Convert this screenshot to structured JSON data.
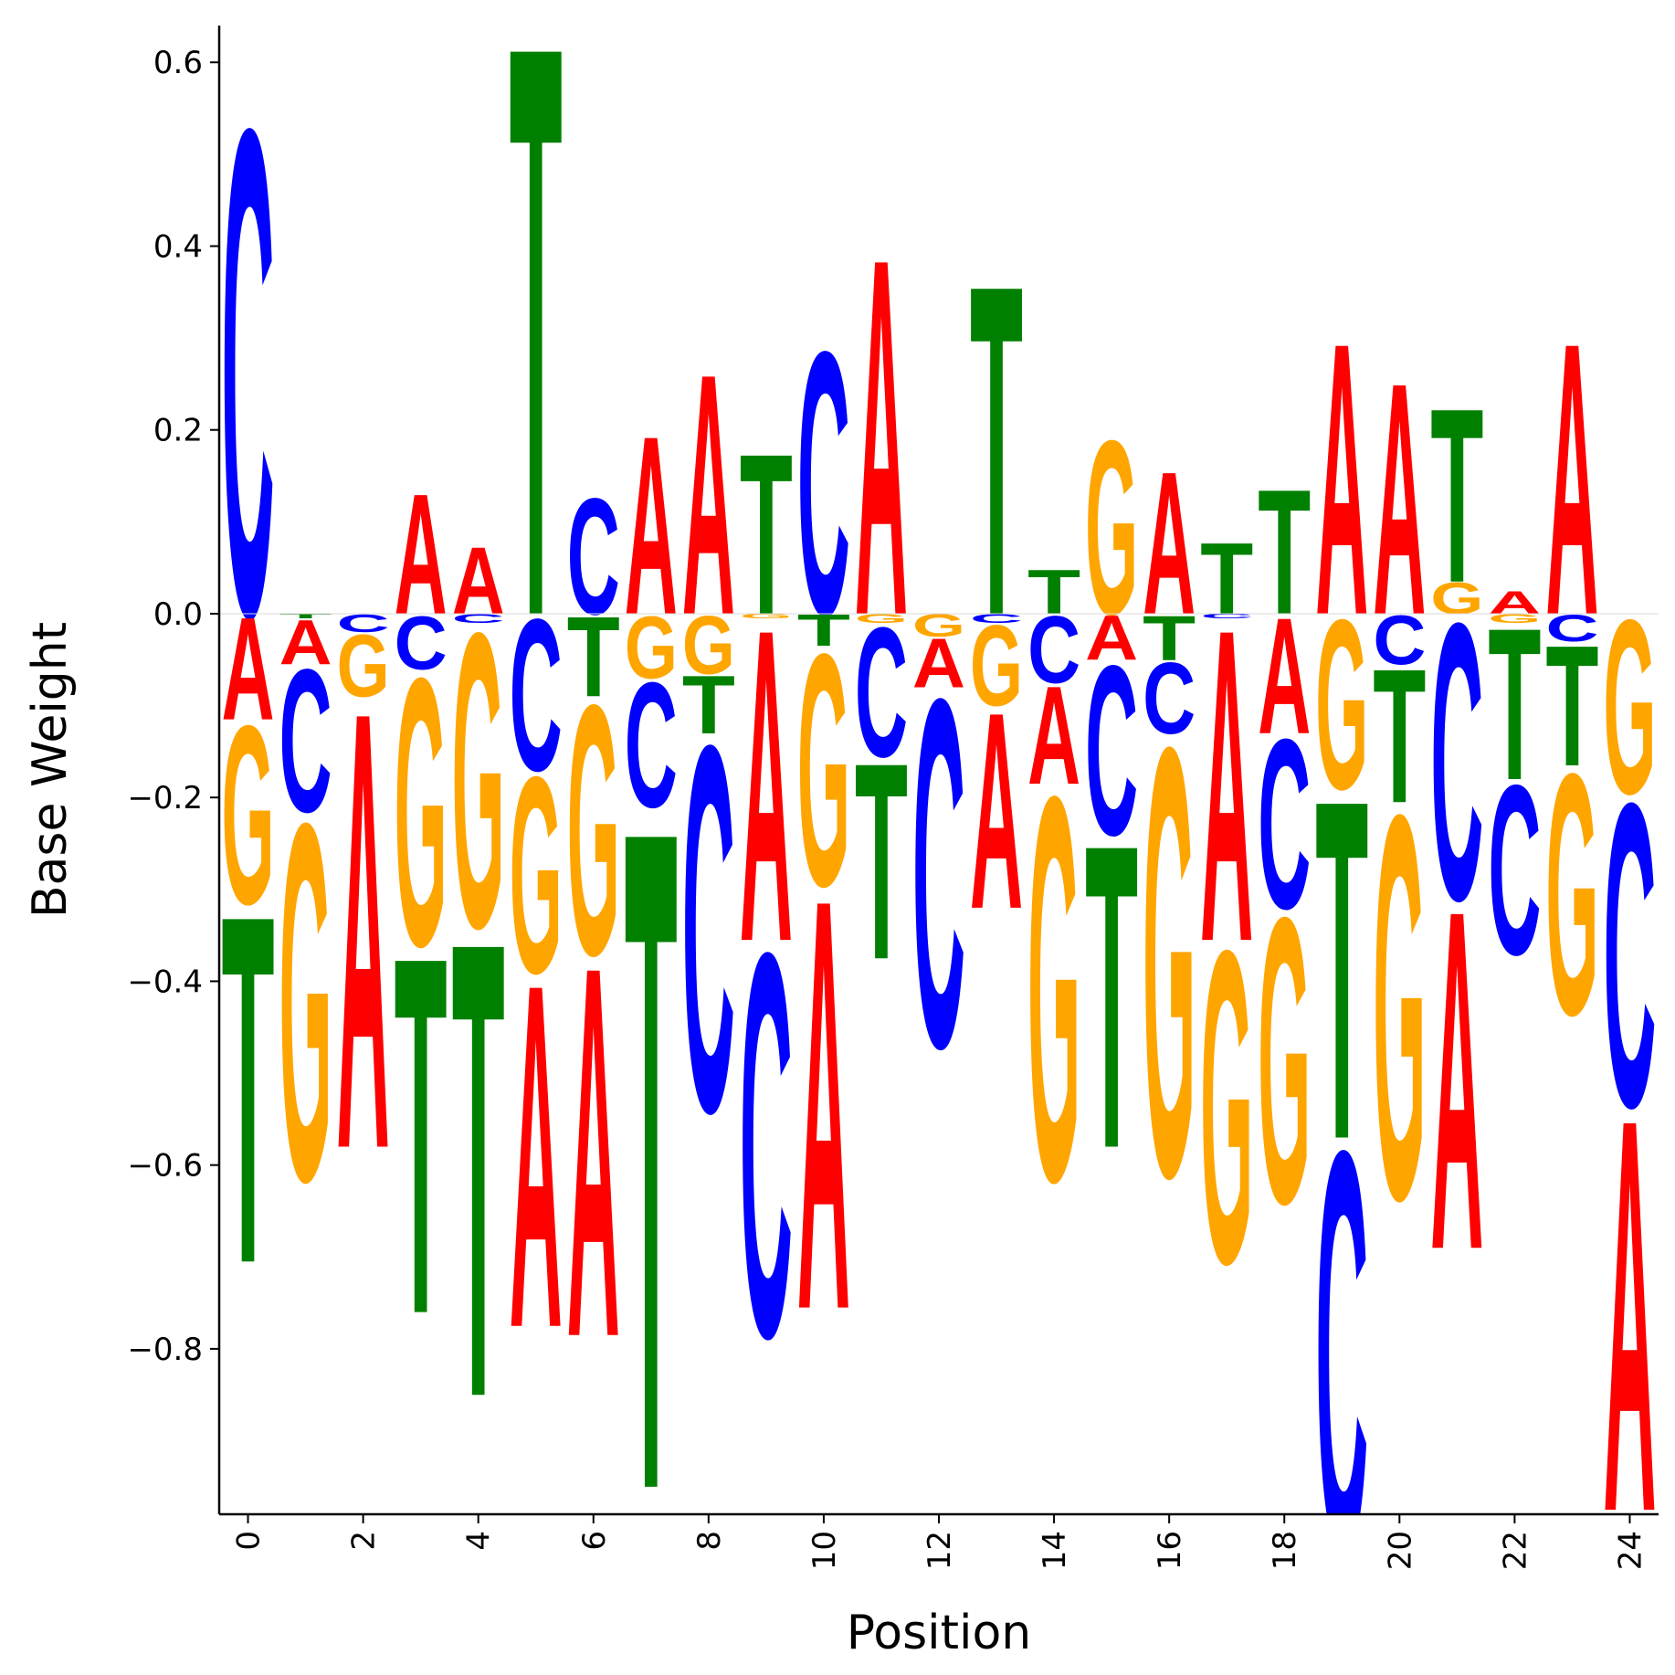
{
  "chart_data": {
    "type": "sequence-logo",
    "xlabel": "Position",
    "ylabel": "Base Weight",
    "xlim": [
      -0.5,
      24.5
    ],
    "ylim": [
      -0.98,
      0.64
    ],
    "x_ticks": [
      0,
      2,
      4,
      6,
      8,
      10,
      12,
      14,
      16,
      18,
      20,
      22,
      24
    ],
    "y_ticks": [
      0.6,
      0.4,
      0.2,
      0.0,
      -0.2,
      -0.4,
      -0.6,
      -0.8
    ],
    "y_tick_labels": [
      "0.6",
      "0.4",
      "0.2",
      "0.0",
      "−0.2",
      "−0.4",
      "−0.6",
      "−0.8"
    ],
    "x_tick_labels": [
      "0",
      "2",
      "4",
      "6",
      "8",
      "10",
      "12",
      "14",
      "16",
      "18",
      "20",
      "22",
      "24"
    ],
    "colors": {
      "A": "#ff0000",
      "C": "#0000ff",
      "G": "#ffa500",
      "T": "#008000"
    },
    "positions": [
      {
        "pos": 0,
        "A": -0.115,
        "C": 0.545,
        "G": -0.2,
        "T": -0.39
      },
      {
        "pos": 1,
        "A": -0.05,
        "C": -0.16,
        "G": -0.4,
        "T": -0.005
      },
      {
        "pos": 2,
        "A": -0.49,
        "C": -0.02,
        "G": -0.07,
        "T": 0.0
      },
      {
        "pos": 3,
        "A": 0.135,
        "C": -0.06,
        "G": -0.3,
        "T": -0.4
      },
      {
        "pos": 4,
        "A": 0.075,
        "C": -0.01,
        "G": -0.33,
        "T": -0.51
      },
      {
        "pos": 5,
        "A": -0.385,
        "C": -0.17,
        "G": -0.22,
        "T": 0.64
      },
      {
        "pos": 6,
        "A": -0.415,
        "C": 0.13,
        "G": -0.28,
        "T": -0.09
      },
      {
        "pos": 7,
        "A": 0.2,
        "C": -0.14,
        "G": -0.07,
        "T": -0.74
      },
      {
        "pos": 8,
        "A": 0.27,
        "C": -0.41,
        "G": -0.065,
        "T": -0.065
      },
      {
        "pos": 9,
        "A": -0.35,
        "C": -0.43,
        "G": -0.005,
        "T": 0.18
      },
      {
        "pos": 10,
        "A": -0.46,
        "C": 0.295,
        "G": -0.26,
        "T": -0.035
      },
      {
        "pos": 11,
        "A": 0.4,
        "C": -0.145,
        "G": -0.01,
        "T": -0.22
      },
      {
        "pos": 12,
        "A": -0.055,
        "C": -0.39,
        "G": -0.025,
        "T": 0.0
      },
      {
        "pos": 13,
        "A": -0.22,
        "C": -0.01,
        "G": -0.09,
        "T": 0.37
      },
      {
        "pos": 14,
        "A": -0.11,
        "C": -0.075,
        "G": -0.43,
        "T": 0.05
      },
      {
        "pos": 15,
        "A": -0.05,
        "C": -0.19,
        "G": 0.195,
        "T": -0.34
      },
      {
        "pos": 16,
        "A": 0.16,
        "C": -0.08,
        "G": -0.48,
        "T": -0.05
      },
      {
        "pos": 17,
        "A": -0.35,
        "C": -0.005,
        "G": -0.35,
        "T": 0.08
      },
      {
        "pos": 18,
        "A": -0.13,
        "C": -0.19,
        "G": -0.32,
        "T": 0.14
      },
      {
        "pos": 19,
        "A": 0.305,
        "C": -0.45,
        "G": -0.19,
        "T": -0.38
      },
      {
        "pos": 20,
        "A": 0.26,
        "C": -0.055,
        "G": -0.43,
        "T": -0.15
      },
      {
        "pos": 21,
        "A": -0.38,
        "C": -0.31,
        "G": 0.035,
        "T": 0.195
      },
      {
        "pos": 22,
        "A": 0.025,
        "C": -0.19,
        "G": -0.01,
        "T": -0.17
      },
      {
        "pos": 23,
        "A": 0.305,
        "C": -0.03,
        "G": -0.27,
        "T": -0.135
      },
      {
        "pos": 24,
        "A": -0.44,
        "C": -0.34,
        "G": -0.195,
        "T": 0.0
      }
    ]
  }
}
